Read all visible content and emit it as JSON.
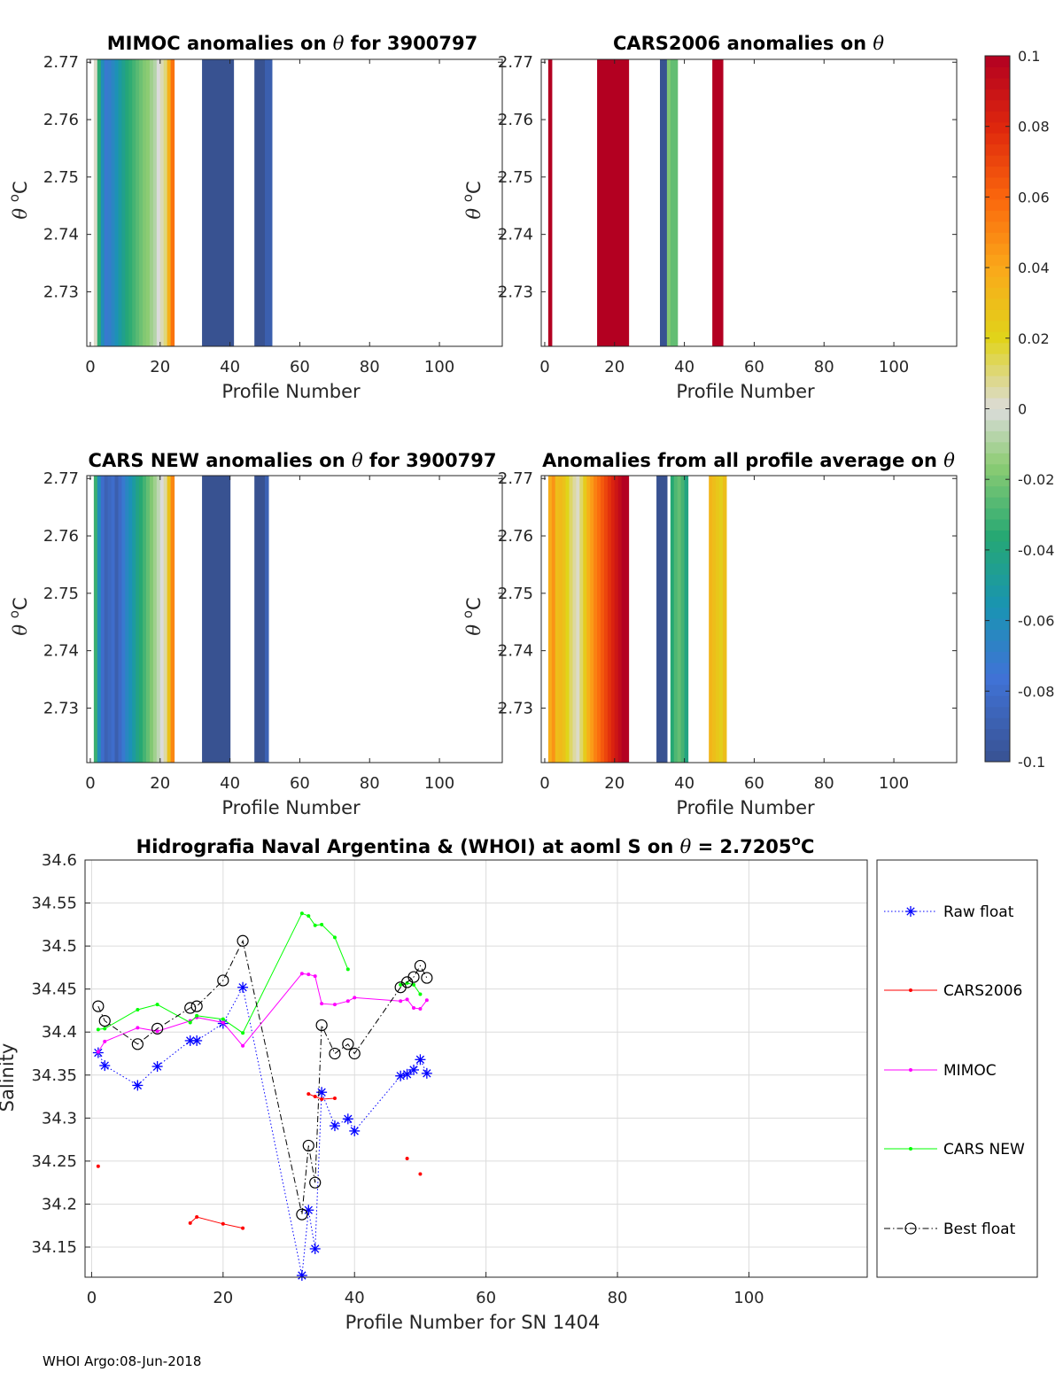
{
  "footer": "WHOI Argo:08-Jun-2018",
  "colors": {
    "raw_float": "#0000ff",
    "cars2006": "#ff0000",
    "mimoc": "#ff00ff",
    "cars_new": "#00ff00",
    "best_float": "#000000",
    "grid": "#dcdcdc",
    "axis": "#262626"
  },
  "colorbar": {
    "min": -0.1,
    "max": 0.1,
    "tick_labels": [
      "0.1",
      "0.08",
      "0.06",
      "0.04",
      "0.02",
      "0",
      "-0.02",
      "-0.04",
      "-0.06",
      "-0.08",
      "-0.1"
    ],
    "tick_values": [
      0.1,
      0.08,
      0.06,
      0.04,
      0.02,
      0,
      -0.02,
      -0.04,
      -0.06,
      -0.08,
      -0.1
    ]
  },
  "chart_data": [
    {
      "type": "heatmap",
      "title_parts": [
        "MIMOC anomalies on ",
        "θ",
        "  for 3900797"
      ],
      "xlabel": "Profile Number",
      "ylabel_parts": [
        "θ",
        " ",
        "o",
        "C"
      ],
      "xlim": [
        -1,
        118
      ],
      "ylim": [
        2.7205,
        2.7705
      ],
      "x_ticks": [
        0,
        20,
        40,
        60,
        80,
        100
      ],
      "x_tick_labels": [
        "0",
        "20",
        "40",
        "60",
        "80",
        "100"
      ],
      "y_ticks": [
        2.73,
        2.74,
        2.75,
        2.76,
        2.77
      ],
      "y_tick_labels": [
        "2.73",
        "2.74",
        "2.75",
        "2.76",
        "2.77"
      ],
      "columns": [
        {
          "x0": 1,
          "x1": 2,
          "v": 0.002
        },
        {
          "x0": 2,
          "x1": 3,
          "v": -0.035
        },
        {
          "x0": 3,
          "x1": 4,
          "v": -0.06
        },
        {
          "x0": 4,
          "x1": 5,
          "v": -0.072
        },
        {
          "x0": 5,
          "x1": 6,
          "v": -0.07
        },
        {
          "x0": 6,
          "x1": 7,
          "v": -0.064
        },
        {
          "x0": 7,
          "x1": 8,
          "v": -0.058
        },
        {
          "x0": 8,
          "x1": 9,
          "v": -0.05
        },
        {
          "x0": 9,
          "x1": 10,
          "v": -0.044
        },
        {
          "x0": 10,
          "x1": 11,
          "v": -0.038
        },
        {
          "x0": 11,
          "x1": 12,
          "v": -0.034
        },
        {
          "x0": 12,
          "x1": 13,
          "v": -0.03
        },
        {
          "x0": 13,
          "x1": 14,
          "v": -0.026
        },
        {
          "x0": 14,
          "x1": 15,
          "v": -0.022
        },
        {
          "x0": 15,
          "x1": 16,
          "v": -0.018
        },
        {
          "x0": 16,
          "x1": 17,
          "v": -0.016
        },
        {
          "x0": 17,
          "x1": 18,
          "v": -0.012
        },
        {
          "x0": 18,
          "x1": 19,
          "v": -0.008
        },
        {
          "x0": 19,
          "x1": 20,
          "v": 0.0
        },
        {
          "x0": 20,
          "x1": 21,
          "v": 0.004
        },
        {
          "x0": 21,
          "x1": 22,
          "v": 0.01
        },
        {
          "x0": 22,
          "x1": 23,
          "v": 0.036
        },
        {
          "x0": 23,
          "x1": 24,
          "v": 0.056
        },
        {
          "x0": 32,
          "x1": 41,
          "v": -0.1
        },
        {
          "x0": 47,
          "x1": 50,
          "v": -0.1
        },
        {
          "x0": 50,
          "x1": 52,
          "v": -0.09
        }
      ]
    },
    {
      "type": "heatmap",
      "title_parts": [
        "CARS2006 anomalies on ",
        "θ",
        ""
      ],
      "xlabel": "Profile Number",
      "ylabel_parts": [
        "θ",
        " ",
        "o",
        "C"
      ],
      "xlim": [
        -1,
        118
      ],
      "ylim": [
        2.7205,
        2.7705
      ],
      "x_ticks": [
        0,
        20,
        40,
        60,
        80,
        100
      ],
      "x_tick_labels": [
        "0",
        "20",
        "40",
        "60",
        "80",
        "100"
      ],
      "y_ticks": [
        2.73,
        2.74,
        2.75,
        2.76,
        2.77
      ],
      "y_tick_labels": [
        "2.73",
        "2.74",
        "2.75",
        "2.76",
        "2.77"
      ],
      "columns": [
        {
          "x0": 1,
          "x1": 2,
          "v": 0.1
        },
        {
          "x0": 15,
          "x1": 24,
          "v": 0.1
        },
        {
          "x0": 33,
          "x1": 35,
          "v": -0.1
        },
        {
          "x0": 35,
          "x1": 36,
          "v": -0.018
        },
        {
          "x0": 36,
          "x1": 38,
          "v": -0.024
        },
        {
          "x0": 48,
          "x1": 51,
          "v": 0.1
        }
      ]
    },
    {
      "type": "heatmap",
      "title_parts": [
        "CARS NEW anomalies on ",
        "θ",
        " for 3900797"
      ],
      "xlabel": "Profile Number",
      "ylabel_parts": [
        "θ",
        " ",
        "o",
        "C"
      ],
      "xlim": [
        -1,
        118
      ],
      "ylim": [
        2.7205,
        2.7705
      ],
      "x_ticks": [
        0,
        20,
        40,
        60,
        80,
        100
      ],
      "x_tick_labels": [
        "0",
        "20",
        "40",
        "60",
        "80",
        "100"
      ],
      "y_ticks": [
        2.73,
        2.74,
        2.75,
        2.76,
        2.77
      ],
      "y_tick_labels": [
        "2.73",
        "2.74",
        "2.75",
        "2.76",
        "2.77"
      ],
      "columns": [
        {
          "x0": 1,
          "x1": 2,
          "v": -0.032
        },
        {
          "x0": 2,
          "x1": 3,
          "v": -0.06
        },
        {
          "x0": 3,
          "x1": 4,
          "v": -0.08
        },
        {
          "x0": 4,
          "x1": 5,
          "v": -0.088
        },
        {
          "x0": 5,
          "x1": 6,
          "v": -0.084
        },
        {
          "x0": 6,
          "x1": 7,
          "v": -0.08
        },
        {
          "x0": 7,
          "x1": 8,
          "v": -0.09
        },
        {
          "x0": 8,
          "x1": 9,
          "v": -0.082
        },
        {
          "x0": 9,
          "x1": 10,
          "v": -0.072
        },
        {
          "x0": 10,
          "x1": 11,
          "v": -0.064
        },
        {
          "x0": 11,
          "x1": 12,
          "v": -0.058
        },
        {
          "x0": 12,
          "x1": 13,
          "v": -0.05
        },
        {
          "x0": 13,
          "x1": 14,
          "v": -0.042
        },
        {
          "x0": 14,
          "x1": 15,
          "v": -0.036
        },
        {
          "x0": 15,
          "x1": 16,
          "v": -0.03
        },
        {
          "x0": 16,
          "x1": 17,
          "v": -0.024
        },
        {
          "x0": 17,
          "x1": 18,
          "v": -0.018
        },
        {
          "x0": 18,
          "x1": 19,
          "v": -0.012
        },
        {
          "x0": 19,
          "x1": 20,
          "v": -0.006
        },
        {
          "x0": 20,
          "x1": 21,
          "v": 0.0
        },
        {
          "x0": 21,
          "x1": 22,
          "v": 0.006
        },
        {
          "x0": 22,
          "x1": 23,
          "v": 0.028
        },
        {
          "x0": 23,
          "x1": 24,
          "v": 0.05
        },
        {
          "x0": 32,
          "x1": 40,
          "v": -0.1
        },
        {
          "x0": 47,
          "x1": 50,
          "v": -0.1
        },
        {
          "x0": 50,
          "x1": 51,
          "v": -0.088
        }
      ]
    },
    {
      "type": "heatmap",
      "title_parts": [
        "Anomalies from all profile average on ",
        "θ",
        ""
      ],
      "xlabel": "Profile Number",
      "ylabel_parts": [
        "θ",
        " ",
        "o",
        "C"
      ],
      "xlim": [
        -1,
        118
      ],
      "ylim": [
        2.7205,
        2.7705
      ],
      "x_ticks": [
        0,
        20,
        40,
        60,
        80,
        100
      ],
      "x_tick_labels": [
        "0",
        "20",
        "40",
        "60",
        "80",
        "100"
      ],
      "y_ticks": [
        2.73,
        2.74,
        2.75,
        2.76,
        2.77
      ],
      "y_tick_labels": [
        "2.73",
        "2.74",
        "2.75",
        "2.76",
        "2.77"
      ],
      "columns": [
        {
          "x0": 1,
          "x1": 2,
          "v": 0.038
        },
        {
          "x0": 2,
          "x1": 3,
          "v": 0.046
        },
        {
          "x0": 3,
          "x1": 4,
          "v": 0.03
        },
        {
          "x0": 4,
          "x1": 5,
          "v": 0.032
        },
        {
          "x0": 5,
          "x1": 6,
          "v": 0.028
        },
        {
          "x0": 6,
          "x1": 7,
          "v": 0.02
        },
        {
          "x0": 7,
          "x1": 8,
          "v": 0.012
        },
        {
          "x0": 8,
          "x1": 9,
          "v": 0.006
        },
        {
          "x0": 9,
          "x1": 10,
          "v": 0.002
        },
        {
          "x0": 10,
          "x1": 11,
          "v": 0.012
        },
        {
          "x0": 11,
          "x1": 12,
          "v": 0.024
        },
        {
          "x0": 12,
          "x1": 13,
          "v": 0.036
        },
        {
          "x0": 13,
          "x1": 14,
          "v": 0.044
        },
        {
          "x0": 14,
          "x1": 15,
          "v": 0.052
        },
        {
          "x0": 15,
          "x1": 16,
          "v": 0.058
        },
        {
          "x0": 16,
          "x1": 17,
          "v": 0.064
        },
        {
          "x0": 17,
          "x1": 18,
          "v": 0.07
        },
        {
          "x0": 18,
          "x1": 19,
          "v": 0.076
        },
        {
          "x0": 19,
          "x1": 20,
          "v": 0.082
        },
        {
          "x0": 20,
          "x1": 21,
          "v": 0.088
        },
        {
          "x0": 21,
          "x1": 22,
          "v": 0.094
        },
        {
          "x0": 22,
          "x1": 23,
          "v": 0.1
        },
        {
          "x0": 23,
          "x1": 24,
          "v": 0.1
        },
        {
          "x0": 32,
          "x1": 35,
          "v": -0.1
        },
        {
          "x0": 36,
          "x1": 37,
          "v": -0.036
        },
        {
          "x0": 37,
          "x1": 38,
          "v": -0.028
        },
        {
          "x0": 38,
          "x1": 39,
          "v": -0.024
        },
        {
          "x0": 39,
          "x1": 40,
          "v": -0.03
        },
        {
          "x0": 40,
          "x1": 41,
          "v": -0.04
        },
        {
          "x0": 47,
          "x1": 48,
          "v": 0.034
        },
        {
          "x0": 48,
          "x1": 49,
          "v": 0.03
        },
        {
          "x0": 49,
          "x1": 50,
          "v": 0.026
        },
        {
          "x0": 50,
          "x1": 51,
          "v": 0.022
        },
        {
          "x0": 51,
          "x1": 52,
          "v": 0.03
        }
      ]
    },
    {
      "type": "line",
      "title_parts": [
        "Hidrografia Naval Argentina & (WHOI) at aoml S on ",
        "θ",
        " = 2.7205",
        "o",
        "C"
      ],
      "xlabel": "Profile Number for SN 1404",
      "ylabel": "Salinity",
      "xlim": [
        -1,
        118
      ],
      "ylim": [
        34.115,
        34.6
      ],
      "x_ticks": [
        0,
        20,
        40,
        60,
        80,
        100
      ],
      "x_tick_labels": [
        "0",
        "20",
        "40",
        "60",
        "80",
        "100"
      ],
      "y_ticks": [
        34.15,
        34.2,
        34.25,
        34.3,
        34.35,
        34.4,
        34.45,
        34.5,
        34.55,
        34.6
      ],
      "y_tick_labels": [
        "34.15",
        "34.2",
        "34.25",
        "34.3",
        "34.35",
        "34.4",
        "34.45",
        "34.5",
        "34.55",
        "34.6"
      ],
      "grid": true,
      "legend_position": "right-outside",
      "series": [
        {
          "name": "Raw float",
          "color_key": "raw_float",
          "marker": "asterisk",
          "line": "dotted",
          "points": [
            [
              1,
              34.376
            ],
            [
              2,
              34.361
            ],
            [
              7,
              34.338
            ],
            [
              10,
              34.36
            ],
            [
              15,
              34.39
            ],
            [
              16,
              34.39
            ],
            [
              20,
              34.41
            ],
            [
              23,
              34.452
            ],
            [
              32,
              34.117
            ],
            [
              33,
              34.193
            ],
            [
              34,
              34.148
            ],
            [
              35,
              34.33
            ],
            [
              37,
              34.291
            ],
            [
              39,
              34.299
            ],
            [
              40,
              34.285
            ],
            [
              47,
              34.349
            ],
            [
              48,
              34.351
            ],
            [
              49,
              34.356
            ],
            [
              50,
              34.368
            ],
            [
              51,
              34.352
            ]
          ]
        },
        {
          "name": "CARS2006",
          "color_key": "cars2006",
          "marker": "dot",
          "line": "solid",
          "points": [
            [
              1,
              34.244
            ],
            [
              null,
              null
            ],
            [
              15,
              34.178
            ],
            [
              16,
              34.185
            ],
            [
              20,
              34.177
            ],
            [
              23,
              34.172
            ],
            [
              null,
              null
            ],
            [
              33,
              34.328
            ],
            [
              34,
              34.325
            ],
            [
              35,
              34.322
            ],
            [
              37,
              34.323
            ],
            [
              null,
              null
            ],
            [
              48,
              34.253
            ],
            [
              null,
              null
            ],
            [
              50,
              34.235
            ]
          ]
        },
        {
          "name": "MIMOC",
          "color_key": "mimoc",
          "marker": "dot",
          "line": "solid",
          "points": [
            [
              1,
              34.377
            ],
            [
              2,
              34.389
            ],
            [
              7,
              34.405
            ],
            [
              10,
              34.401
            ],
            [
              15,
              34.413
            ],
            [
              16,
              34.417
            ],
            [
              20,
              34.411
            ],
            [
              23,
              34.384
            ],
            [
              32,
              34.468
            ],
            [
              33,
              34.467
            ],
            [
              34,
              34.465
            ],
            [
              35,
              34.433
            ],
            [
              37,
              34.432
            ],
            [
              39,
              34.436
            ],
            [
              40,
              34.44
            ],
            [
              47,
              34.436
            ],
            [
              48,
              34.438
            ],
            [
              49,
              34.428
            ],
            [
              50,
              34.427
            ],
            [
              51,
              34.437
            ]
          ]
        },
        {
          "name": "CARS NEW",
          "color_key": "cars_new",
          "marker": "dot",
          "line": "solid",
          "points": [
            [
              1,
              34.403
            ],
            [
              2,
              34.404
            ],
            [
              7,
              34.426
            ],
            [
              10,
              34.432
            ],
            [
              15,
              34.411
            ],
            [
              16,
              34.419
            ],
            [
              20,
              34.415
            ],
            [
              23,
              34.399
            ],
            [
              32,
              34.538
            ],
            [
              33,
              34.535
            ],
            [
              34,
              34.524
            ],
            [
              35,
              34.525
            ],
            [
              37,
              34.51
            ],
            [
              39,
              34.473
            ],
            [
              null,
              null
            ],
            [
              47,
              34.455
            ],
            [
              48,
              34.457
            ],
            [
              49,
              34.455
            ],
            [
              50,
              34.444
            ]
          ]
        },
        {
          "name": "Best float",
          "color_key": "best_float",
          "marker": "circle",
          "line": "dashdot",
          "points": [
            [
              1,
              34.43
            ],
            [
              2,
              34.413
            ],
            [
              7,
              34.386
            ],
            [
              10,
              34.404
            ],
            [
              15,
              34.428
            ],
            [
              16,
              34.43
            ],
            [
              20,
              34.46
            ],
            [
              23,
              34.506
            ],
            [
              32,
              34.188
            ],
            [
              33,
              34.268
            ],
            [
              34,
              34.225
            ],
            [
              35,
              34.408
            ],
            [
              37,
              34.375
            ],
            [
              39,
              34.386
            ],
            [
              40,
              34.375
            ],
            [
              47,
              34.452
            ],
            [
              48,
              34.458
            ],
            [
              49,
              34.464
            ],
            [
              50,
              34.477
            ],
            [
              51,
              34.463
            ]
          ]
        }
      ]
    }
  ]
}
